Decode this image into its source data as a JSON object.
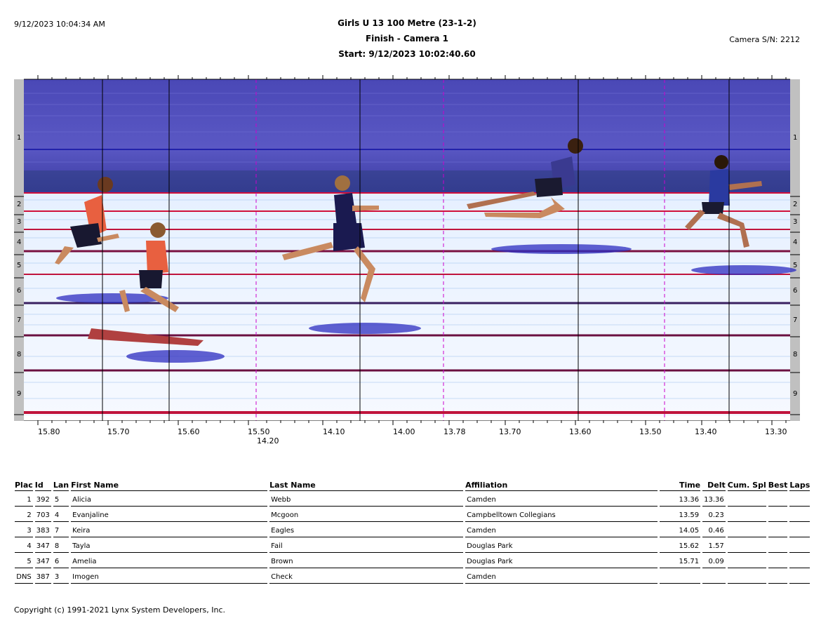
{
  "header": {
    "timestamp": "9/12/2023 10:04:34 AM",
    "title": "Girls U 13 100 Metre (23-1-2)",
    "subtitle": "Finish - Camera 1",
    "start": "Start: 9/12/2023 10:02:40.60",
    "camera": "Camera S/N: 2212"
  },
  "photo": {
    "lane_labels": [
      "1",
      "2",
      "3",
      "4",
      "5",
      "6",
      "7",
      "8",
      "9"
    ],
    "tick_labels": [
      "15.80",
      "15.70",
      "15.60",
      "15.50",
      "14.10",
      "14.00",
      "13.78",
      "13.70",
      "13.60",
      "13.50",
      "13.40",
      "13.30"
    ],
    "secondary_tick_label": "14.20",
    "colors": {
      "sky": "#4b49b8",
      "track": "#ecf4ff",
      "lane_line": "#c0143c",
      "hairline": "#000000",
      "marker": "#cc00cc",
      "side_bar": "#c0c0c0"
    }
  },
  "results": {
    "columns": [
      "Plac",
      "Id",
      "Lan",
      "First Name",
      "Last Name",
      "Affiliation",
      "Time",
      "Delt",
      "Cum. Spl",
      "Best",
      "Laps"
    ],
    "rows": [
      {
        "place": "1",
        "id": "392",
        "lane": "5",
        "first": "Alicia",
        "last": "Webb",
        "affiliation": "Camden",
        "time": "13.36",
        "delta": "13.36"
      },
      {
        "place": "2",
        "id": "703",
        "lane": "4",
        "first": "Evanjaline",
        "last": "Mcgoon",
        "affiliation": "Campbelltown Collegians",
        "time": "13.59",
        "delta": "0.23"
      },
      {
        "place": "3",
        "id": "383",
        "lane": "7",
        "first": "Keira",
        "last": "Eagles",
        "affiliation": "Camden",
        "time": "14.05",
        "delta": "0.46"
      },
      {
        "place": "4",
        "id": "347",
        "lane": "8",
        "first": "Tayla",
        "last": "Fail",
        "affiliation": "Douglas Park",
        "time": "15.62",
        "delta": "1.57"
      },
      {
        "place": "5",
        "id": "347",
        "lane": "6",
        "first": "Amelia",
        "last": "Brown",
        "affiliation": "Douglas Park",
        "time": "15.71",
        "delta": "0.09"
      },
      {
        "place": "DNS",
        "id": "387",
        "lane": "3",
        "first": "Imogen",
        "last": "Check",
        "affiliation": "Camden",
        "time": "",
        "delta": ""
      }
    ]
  },
  "footer": {
    "copyright": "Copyright (c) 1991-2021 Lynx System Developers, Inc."
  }
}
